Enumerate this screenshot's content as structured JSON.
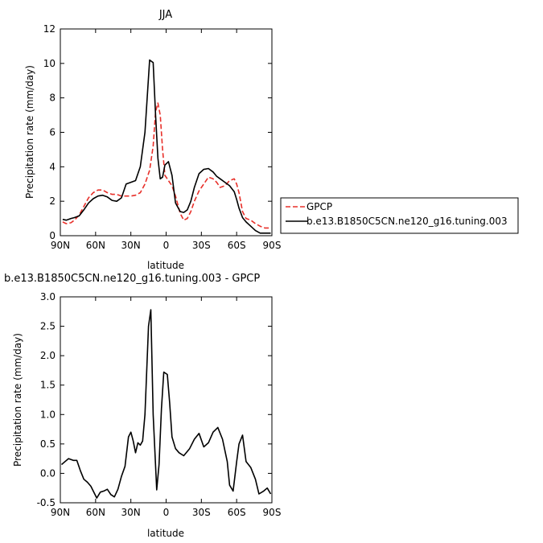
{
  "chart_data": [
    {
      "type": "line",
      "title": "JJA",
      "xlabel": "latitude",
      "ylabel": "Precipitation rate (mm/day)",
      "xlim": [
        90,
        -90
      ],
      "ylim": [
        0,
        12
      ],
      "x_ticks": [
        "90N",
        "60N",
        "30N",
        "0",
        "30S",
        "60S",
        "90S"
      ],
      "y_ticks": [
        "0",
        "2",
        "4",
        "6",
        "8",
        "10",
        "12"
      ],
      "legend": "right",
      "series": [
        {
          "name": "GPCP",
          "style": "dashed",
          "color": "#e8302a",
          "x": [
            88,
            85,
            81,
            78,
            74,
            70,
            66,
            62,
            58,
            54,
            50,
            46,
            42,
            38,
            34,
            30,
            26,
            22,
            18,
            14,
            11,
            9,
            7,
            5,
            3,
            1,
            -2,
            -5,
            -8,
            -12,
            -15,
            -18,
            -21,
            -24,
            -28,
            -32,
            -36,
            -40,
            -43,
            -46,
            -50,
            -54,
            -58,
            -60,
            -62,
            -65,
            -68,
            -72,
            -76,
            -80,
            -84,
            -87,
            -89
          ],
          "y": [
            0.8,
            0.7,
            0.75,
            0.9,
            1.2,
            1.7,
            2.2,
            2.5,
            2.65,
            2.65,
            2.5,
            2.4,
            2.4,
            2.3,
            2.3,
            2.3,
            2.35,
            2.5,
            3.0,
            3.8,
            5.2,
            7.2,
            7.7,
            7.0,
            5.0,
            3.5,
            3.2,
            2.9,
            2.3,
            1.3,
            0.9,
            1.0,
            1.4,
            2.0,
            2.6,
            3.0,
            3.4,
            3.3,
            3.1,
            2.8,
            2.9,
            3.2,
            3.3,
            3.0,
            2.5,
            1.4,
            1.0,
            0.9,
            0.7,
            0.55,
            0.45,
            0.45,
            0.5
          ]
        },
        {
          "name": "b.e13.B1850C5CN.ne120_g16.tuning.003",
          "style": "solid",
          "color": "#000000",
          "x": [
            88,
            85,
            81,
            78,
            74,
            70,
            66,
            62,
            58,
            54,
            50,
            46,
            42,
            38,
            34,
            30,
            26,
            22,
            18,
            14,
            11,
            9,
            7,
            5,
            3,
            1,
            -2,
            -5,
            -8,
            -12,
            -15,
            -18,
            -21,
            -24,
            -28,
            -32,
            -36,
            -40,
            -43,
            -46,
            -50,
            -54,
            -58,
            -60,
            -62,
            -65,
            -68,
            -72,
            -76,
            -80,
            -84,
            -87,
            -89
          ],
          "y": [
            0.95,
            0.9,
            1.0,
            1.05,
            1.15,
            1.5,
            1.9,
            2.15,
            2.3,
            2.35,
            2.25,
            2.05,
            2.0,
            2.2,
            3.0,
            3.1,
            3.2,
            4.0,
            6.0,
            10.2,
            10.05,
            7.0,
            4.5,
            3.3,
            3.4,
            4.1,
            4.3,
            3.5,
            1.9,
            1.4,
            1.35,
            1.5,
            2.0,
            2.8,
            3.6,
            3.85,
            3.9,
            3.7,
            3.45,
            3.3,
            3.1,
            2.9,
            2.55,
            2.1,
            1.6,
            1.05,
            0.8,
            0.55,
            0.3,
            0.15,
            0.15,
            0.15,
            0.15
          ]
        }
      ]
    },
    {
      "type": "line",
      "title": "b.e13.B1850C5CN.ne120_g16.tuning.003 - GPCP",
      "xlabel": "latitude",
      "ylabel": "Precipitation rate (mm/day)",
      "xlim": [
        90,
        -90
      ],
      "ylim": [
        -0.5,
        3.0
      ],
      "x_ticks": [
        "90N",
        "60N",
        "30N",
        "0",
        "30S",
        "60S",
        "90S"
      ],
      "y_ticks": [
        "-0.5",
        "0.0",
        "0.5",
        "1.0",
        "1.5",
        "2.0",
        "2.5",
        "3.0"
      ],
      "series": [
        {
          "color": "#000000",
          "x": [
            89,
            86,
            83,
            79,
            76,
            73,
            70,
            67,
            64,
            62,
            59,
            56,
            53,
            50,
            47,
            44,
            41,
            38,
            35,
            32,
            30,
            28,
            26,
            24,
            22,
            20,
            18,
            15,
            13,
            11,
            8,
            6,
            4,
            2,
            -1,
            -3,
            -5,
            -8,
            -11,
            -15,
            -20,
            -24,
            -28,
            -32,
            -36,
            -40,
            -44,
            -48,
            -52,
            -54,
            -57,
            -60,
            -62,
            -65,
            -68,
            -72,
            -76,
            -79,
            -83,
            -86,
            -89
          ],
          "y": [
            0.15,
            0.2,
            0.25,
            0.22,
            0.22,
            0.05,
            -0.1,
            -0.15,
            -0.22,
            -0.3,
            -0.42,
            -0.32,
            -0.3,
            -0.27,
            -0.36,
            -0.4,
            -0.27,
            -0.05,
            0.12,
            0.62,
            0.7,
            0.55,
            0.35,
            0.52,
            0.48,
            0.55,
            1.0,
            2.5,
            2.78,
            1.0,
            -0.28,
            0.15,
            1.1,
            1.72,
            1.68,
            1.2,
            0.62,
            0.42,
            0.35,
            0.3,
            0.42,
            0.58,
            0.68,
            0.45,
            0.52,
            0.7,
            0.78,
            0.58,
            0.2,
            -0.2,
            -0.3,
            0.2,
            0.5,
            0.65,
            0.2,
            0.1,
            -0.1,
            -0.35,
            -0.3,
            -0.25,
            -0.35
          ]
        }
      ]
    }
  ]
}
